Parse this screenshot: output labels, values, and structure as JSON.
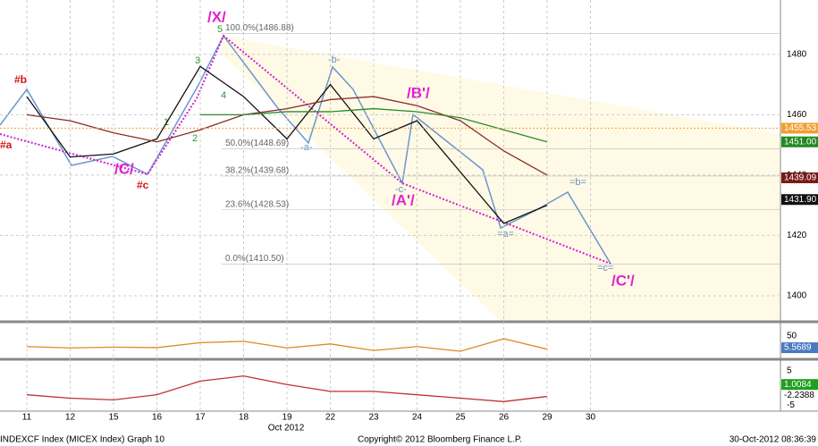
{
  "chart_data": {
    "type": "line",
    "x": [
      "11",
      "12",
      "15",
      "16",
      "17",
      "18",
      "19",
      "22",
      "23",
      "24",
      "25",
      "26",
      "29",
      "30"
    ],
    "x_caption": "Oct 2012",
    "series": [
      {
        "color": "#111111",
        "values": [
          1466,
          1446,
          1447,
          1452,
          1476,
          1466,
          1452,
          1470,
          1452,
          1458,
          1441,
          1424,
          1430,
          null
        ]
      },
      {
        "color": "#8b2a2a",
        "values": [
          1460,
          1458,
          1454,
          1451,
          1455,
          1460,
          1462,
          1465,
          1466,
          1463,
          1458,
          1448,
          1440,
          null
        ]
      },
      {
        "color": "#2a8a2a",
        "values": [
          null,
          null,
          null,
          null,
          1460,
          1460,
          1461,
          1461,
          1462,
          1461,
          1459,
          1455,
          1451,
          null
        ]
      }
    ],
    "ylim": [
      1392,
      1498
    ],
    "yticks": [
      1400,
      1420,
      1440,
      1460,
      1480
    ],
    "fib_levels": [
      {
        "value": 1486.88,
        "label": "100.0%(1486.88)"
      },
      {
        "value": 1448.69,
        "label": "50.0%(1448.69)"
      },
      {
        "value": 1439.68,
        "label": "38.2%(1439.68)"
      },
      {
        "value": 1428.53,
        "label": "23.6%(1428.53)"
      },
      {
        "value": 1410.5,
        "label": "0.0%(1410.50)"
      }
    ],
    "price_tags": [
      {
        "value": 1455.53,
        "label": "1455.53",
        "color": "#f0a030"
      },
      {
        "value": 1451.0,
        "label": "1451.00",
        "color": "#1f8a1f"
      },
      {
        "value": 1439.09,
        "label": "1439.09",
        "color": "#7a1818"
      },
      {
        "value": 1431.9,
        "label": "1431.90",
        "color": "#111111"
      }
    ],
    "annotations": [
      "/X/",
      "/C/",
      "#c",
      "#b",
      "#a",
      "/A'/",
      "/B'/",
      "/C'/",
      "=a=",
      "=b=",
      "=c=",
      "-a-",
      "-b-",
      "-c-",
      "1",
      "2",
      "3",
      "4",
      "5"
    ],
    "panel1": {
      "ylim": [
        -25,
        98
      ],
      "yticks": [
        50
      ],
      "color": "#e08a20",
      "values": [
        10,
        5,
        8,
        6,
        25,
        30,
        5,
        20,
        -5,
        10,
        -8,
        40,
        0,
        null
      ],
      "tag": {
        "value": 5.5689,
        "label": "5.5689"
      }
    },
    "panel2": {
      "ylim": [
        -6.8,
        7.6
      ],
      "yticks": [
        5,
        0,
        -5
      ],
      "color": "#c03030",
      "values": [
        -2,
        -3,
        -3.5,
        -2,
        2,
        3.5,
        1,
        -1,
        -1,
        -2,
        -3,
        -4,
        -2.5,
        null
      ],
      "tags": [
        {
          "value": 1.0084,
          "label": "1.0084",
          "color": "#1fa01f"
        },
        {
          "value": -2.2388,
          "label": "-2.2388",
          "color": "#ffffff"
        }
      ]
    },
    "footer": {
      "left": "INDEXCF Index (MICEX Index) Graph 10",
      "center": "Copyright© 2012 Bloomberg Finance L.P.",
      "right": "30-Oct-2012 08:36:39"
    }
  }
}
